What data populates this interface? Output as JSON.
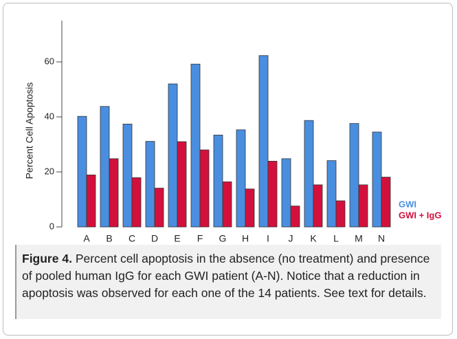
{
  "chart_data": {
    "type": "bar",
    "ylabel": "Percent Cell Apoptosis",
    "categories": [
      "A",
      "B",
      "C",
      "D",
      "E",
      "F",
      "G",
      "H",
      "I",
      "J",
      "K",
      "L",
      "M",
      "N"
    ],
    "series": [
      {
        "name": "GWI",
        "color": "#4a8ee0",
        "values": [
          40.2,
          43.8,
          37.4,
          31.1,
          52,
          59.2,
          33.4,
          35.3,
          62.3,
          24.8,
          38.7,
          24.1,
          37.6,
          34.5
        ]
      },
      {
        "name": "GWI + IgG",
        "color": "#d3103c",
        "values": [
          18.9,
          24.8,
          17.9,
          14.1,
          31,
          28,
          16.4,
          13.8,
          23.9,
          7.6,
          15.3,
          9.5,
          15.3,
          18.1
        ]
      }
    ],
    "ylim": [
      0,
      75
    ],
    "yticks": [
      0,
      20,
      40,
      60
    ]
  },
  "caption": {
    "label": "Figure 4.",
    "text": "Percent cell apoptosis in the absence (no treatment) and presence of pooled human IgG for each GWI patient (A-N). Notice that a reduction in apoptosis was observed for each one of the 14 patients. See text for details."
  }
}
